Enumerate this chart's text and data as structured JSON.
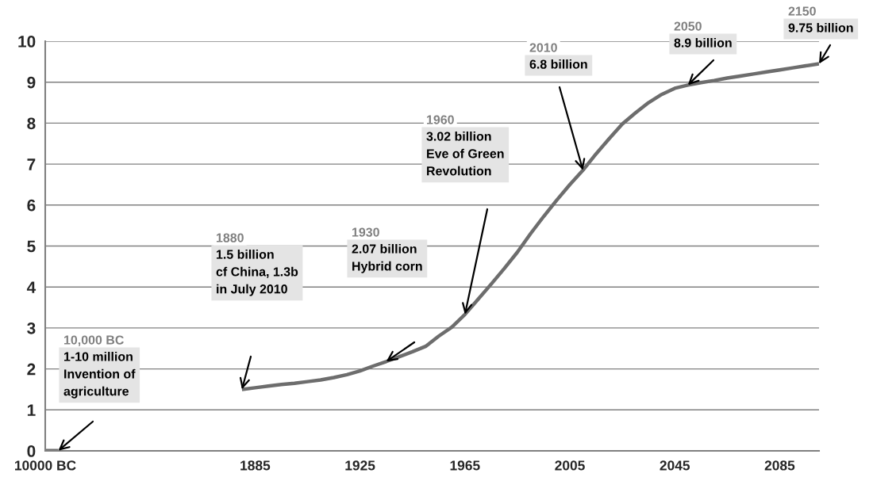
{
  "chart_data": {
    "type": "line",
    "categories": [
      "10000 BC",
      null,
      null,
      null,
      null,
      null,
      null,
      null,
      null,
      null,
      null,
      null,
      null,
      null,
      null,
      null,
      "1885",
      null,
      null,
      null,
      null,
      null,
      null,
      null,
      "1925",
      null,
      null,
      null,
      null,
      null,
      null,
      null,
      "1965",
      null,
      null,
      null,
      null,
      null,
      null,
      null,
      "2005",
      null,
      null,
      null,
      null,
      null,
      null,
      null,
      "2045",
      null,
      null,
      null,
      null,
      null,
      null,
      null,
      "2085",
      null,
      null,
      null
    ],
    "values": [
      0.005,
      0.005,
      null,
      null,
      null,
      null,
      null,
      null,
      null,
      null,
      null,
      null,
      null,
      null,
      null,
      1.5,
      1.54,
      1.58,
      1.62,
      1.65,
      1.69,
      1.73,
      1.79,
      1.86,
      1.95,
      2.07,
      2.18,
      2.3,
      2.42,
      2.55,
      2.8,
      3.02,
      3.33,
      3.7,
      4.07,
      4.45,
      4.85,
      5.3,
      5.72,
      6.12,
      6.5,
      6.85,
      7.25,
      7.62,
      7.98,
      8.25,
      8.5,
      8.7,
      8.85,
      8.93,
      8.99,
      9.04,
      9.1,
      9.15,
      9.2,
      9.25,
      9.3,
      9.35,
      9.4,
      9.45
    ],
    "color": "#6d6d6d",
    "ylim": [
      0,
      10
    ],
    "yticks": [
      0,
      1,
      2,
      3,
      4,
      5,
      6,
      7,
      8,
      9,
      10
    ],
    "grid": "y",
    "marker": "none",
    "line_style": "solid",
    "annotations": [
      "10,000 BC\n1-10 million\nInvention of\nagriculture",
      "1880\n1.5 billion\ncf China, 1.3b\nin July 2010",
      "1930\n2.07 billion\nHybrid corn",
      "1960\n3.02 billion\nEve of Green\nRevolution",
      "2010\n6.8 billion",
      "2050\n8.9 billion",
      "2150\n9.75 billion"
    ]
  }
}
